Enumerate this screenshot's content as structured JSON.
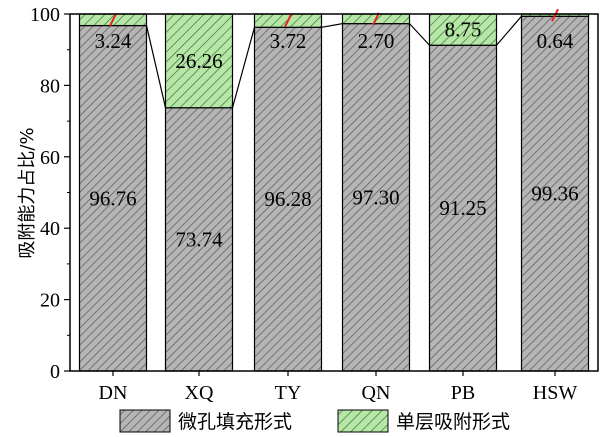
{
  "chart_data": {
    "type": "bar",
    "stacked": true,
    "categories": [
      "DN",
      "XQ",
      "TY",
      "QN",
      "PB",
      "HSW"
    ],
    "series": [
      {
        "name": "微孔填充形式",
        "values": [
          96.76,
          73.74,
          96.28,
          97.3,
          91.25,
          99.36
        ],
        "color": "#b5b5b5",
        "hatch_color": "#555555"
      },
      {
        "name": "单层吸附形式",
        "values": [
          3.24,
          26.26,
          3.72,
          2.7,
          8.75,
          0.64
        ],
        "color": "#b8e6a8",
        "hatch_color": "#2f7a2f"
      }
    ],
    "labels_bottom": [
      "96.76",
      "73.74",
      "96.28",
      "97.30",
      "91.25",
      "99.36"
    ],
    "labels_top": [
      "3.24",
      "26.26",
      "3.72",
      "2.70",
      "8.75",
      "0.64"
    ],
    "ylabel": "吸附能力占比/%",
    "xlabel": "",
    "ylim": [
      0,
      100
    ],
    "yticks": [
      "0",
      "20",
      "40",
      "60",
      "80",
      "100"
    ],
    "legend_position": "bottom",
    "marker_color": "#e8231c"
  }
}
